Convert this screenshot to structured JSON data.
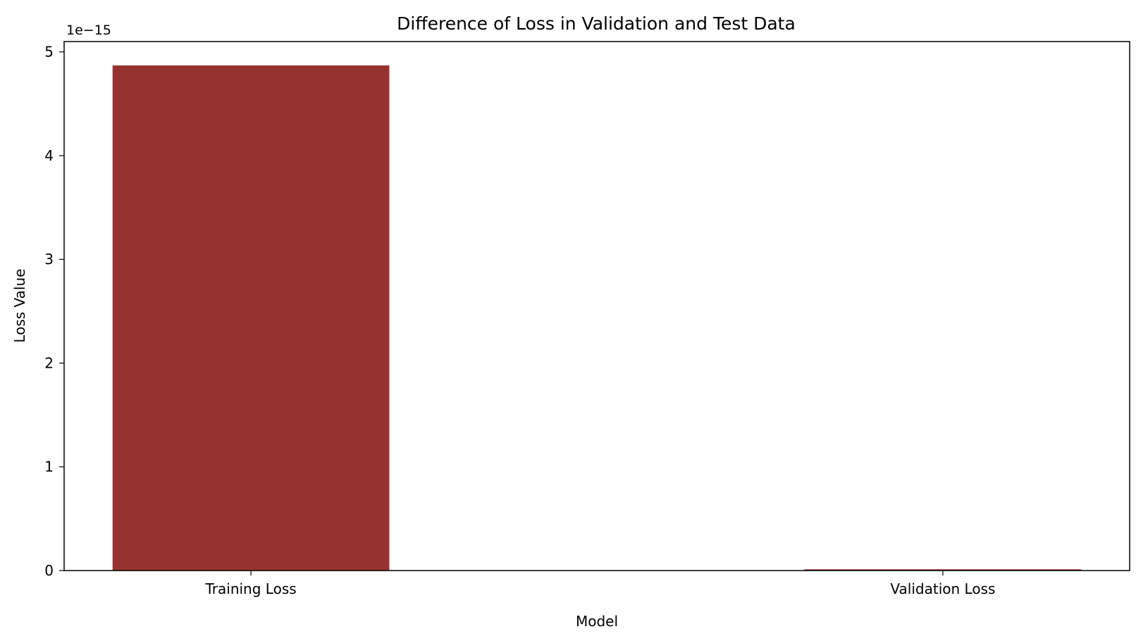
{
  "chart_data": {
    "type": "bar",
    "title": "Difference of Loss in Validation and Test Data",
    "xlabel": "Model",
    "ylabel": "Loss Value",
    "offset_text": "1e−15",
    "scale": 1e-15,
    "categories": [
      "Training Loss",
      "Validation Loss"
    ],
    "values": [
      4.87e-15,
      1.2e-17
    ],
    "ylim": [
      0,
      5.1e-15
    ],
    "yticks": [
      0,
      1,
      2,
      3,
      4,
      5
    ],
    "ytick_labels": [
      "0",
      "1",
      "2",
      "3",
      "4",
      "5"
    ],
    "bar_color": "#963330",
    "grid": false,
    "legend": "none"
  }
}
